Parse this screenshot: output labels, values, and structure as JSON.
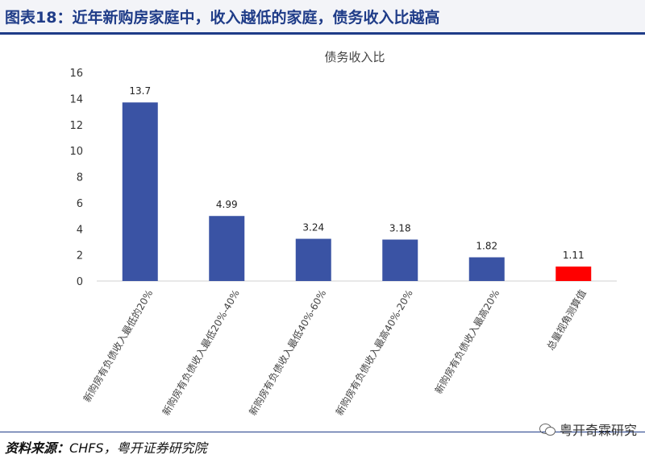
{
  "header": {
    "title": "图表18：近年新购房家庭中，收入越低的家庭，债务收入比越高"
  },
  "source": {
    "label": "资料来源：",
    "text": "CHFS，粤开证券研究院"
  },
  "watermark": {
    "text": "粤开奇霖研究",
    "icon": "wechat-icon"
  },
  "chart_data": {
    "type": "bar",
    "title": "债务收入比",
    "categories": [
      "新购房有负债收入最低的20%",
      "新购房有负债收入最低20%-40%",
      "新购房有负债收入最低40%-60%",
      "新购房有负债收入最高40%-20%",
      "新购房有负债收入最高20%",
      "总量视角测算值"
    ],
    "values": [
      13.7,
      4.99,
      3.24,
      3.18,
      1.82,
      1.11
    ],
    "data_labels": [
      "13.7",
      "4.99",
      "3.24",
      "3.18",
      "1.82",
      "1.11"
    ],
    "colors": [
      "#3a53a4",
      "#3a53a4",
      "#3a53a4",
      "#3a53a4",
      "#3a53a4",
      "#ff0000"
    ],
    "ylim": [
      0,
      16
    ],
    "yticks": [
      0,
      2,
      4,
      6,
      8,
      10,
      12,
      14,
      16
    ],
    "grid": false,
    "legend": "none",
    "xlabel": "",
    "ylabel": ""
  }
}
